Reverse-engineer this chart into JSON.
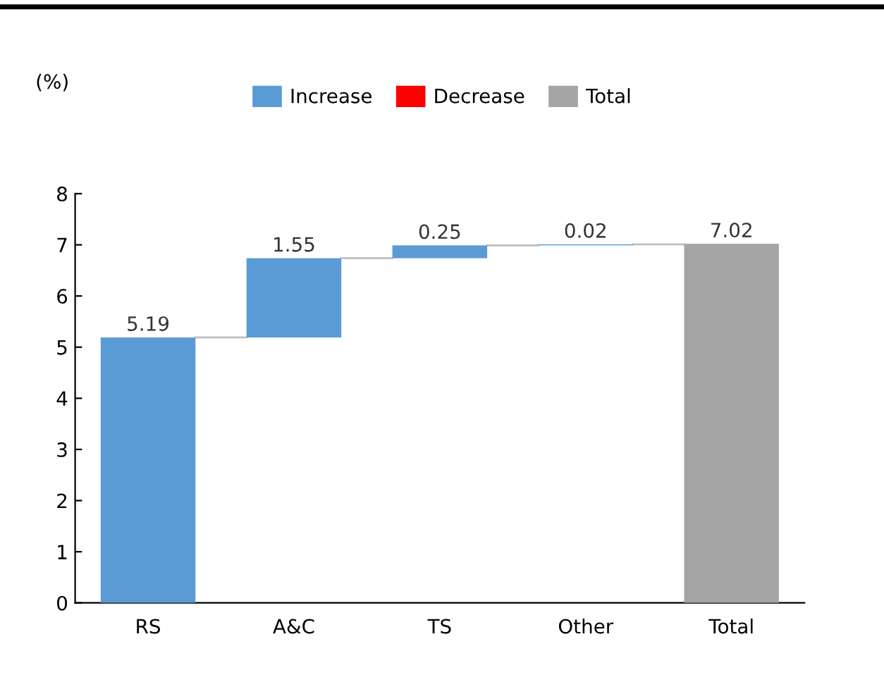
{
  "chart_data": {
    "type": "bar",
    "ylabel": "(%)",
    "categories": [
      "RS",
      "A&C",
      "TS",
      "Other",
      "Total"
    ],
    "series": [
      {
        "name": "Increase",
        "color": "#5b9bd5",
        "values": [
          5.19,
          1.55,
          0.25,
          0.02,
          null
        ],
        "base": [
          0,
          5.19,
          6.74,
          6.99,
          null
        ]
      },
      {
        "name": "Decrease",
        "color": "#ff0000",
        "values": [
          null,
          null,
          null,
          null,
          null
        ]
      },
      {
        "name": "Total",
        "color": "#a5a5a5",
        "values": [
          null,
          null,
          null,
          null,
          7.02
        ],
        "base": [
          null,
          null,
          null,
          null,
          0
        ]
      }
    ],
    "ylim": [
      0,
      8
    ],
    "yticks": [
      0,
      1,
      2,
      3,
      4,
      5,
      6,
      7,
      8
    ],
    "grid": false,
    "legend": "top",
    "data_labels": true
  }
}
